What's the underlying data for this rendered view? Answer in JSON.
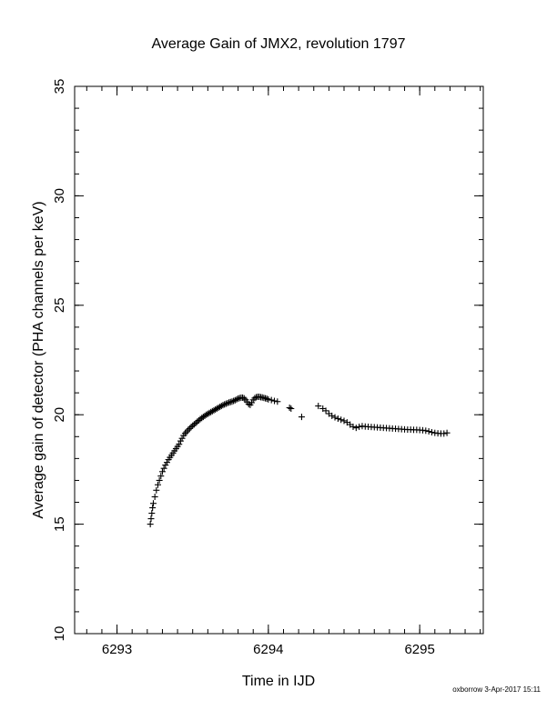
{
  "chart_data": {
    "type": "scatter",
    "title": "Average Gain of JMX2, revolution 1797",
    "xlabel": "Time in IJD",
    "ylabel": "Average gain of detector (PHA channels per keV)",
    "xlim": [
      6292.72,
      6295.42
    ],
    "ylim": [
      10,
      35
    ],
    "xticks": [
      6293,
      6294,
      6295
    ],
    "xtick_labels": [
      "6293",
      "6294",
      "6295"
    ],
    "yticks": [
      10,
      15,
      20,
      25,
      30,
      35
    ],
    "ytick_labels": [
      "10",
      "15",
      "20",
      "25",
      "30",
      "35"
    ],
    "marker": "+",
    "marker_color": "#000000",
    "grid": false,
    "series": [
      {
        "points": [
          [
            6293.22,
            15.0
          ],
          [
            6293.225,
            15.25
          ],
          [
            6293.23,
            15.5
          ],
          [
            6293.235,
            15.75
          ],
          [
            6293.24,
            15.95
          ],
          [
            6293.25,
            16.25
          ],
          [
            6293.26,
            16.55
          ],
          [
            6293.27,
            16.8
          ],
          [
            6293.28,
            17.0
          ],
          [
            6293.29,
            17.2
          ],
          [
            6293.3,
            17.4
          ],
          [
            6293.31,
            17.55
          ],
          [
            6293.32,
            17.7
          ],
          [
            6293.33,
            17.82
          ],
          [
            6293.34,
            17.95
          ],
          [
            6293.35,
            18.05
          ],
          [
            6293.36,
            18.15
          ],
          [
            6293.37,
            18.25
          ],
          [
            6293.38,
            18.35
          ],
          [
            6293.39,
            18.45
          ],
          [
            6293.4,
            18.55
          ],
          [
            6293.41,
            18.65
          ],
          [
            6293.42,
            18.8
          ],
          [
            6293.43,
            18.92
          ],
          [
            6293.44,
            19.05
          ],
          [
            6293.45,
            19.15
          ],
          [
            6293.46,
            19.22
          ],
          [
            6293.47,
            19.3
          ],
          [
            6293.48,
            19.37
          ],
          [
            6293.49,
            19.44
          ],
          [
            6293.5,
            19.5
          ],
          [
            6293.51,
            19.56
          ],
          [
            6293.52,
            19.62
          ],
          [
            6293.53,
            19.68
          ],
          [
            6293.54,
            19.74
          ],
          [
            6293.55,
            19.8
          ],
          [
            6293.56,
            19.85
          ],
          [
            6293.57,
            19.9
          ],
          [
            6293.58,
            19.95
          ],
          [
            6293.59,
            20.0
          ],
          [
            6293.6,
            20.04
          ],
          [
            6293.61,
            20.08
          ],
          [
            6293.62,
            20.12
          ],
          [
            6293.63,
            20.16
          ],
          [
            6293.64,
            20.2
          ],
          [
            6293.65,
            20.24
          ],
          [
            6293.66,
            20.28
          ],
          [
            6293.67,
            20.32
          ],
          [
            6293.68,
            20.36
          ],
          [
            6293.69,
            20.4
          ],
          [
            6293.7,
            20.44
          ],
          [
            6293.71,
            20.47
          ],
          [
            6293.72,
            20.5
          ],
          [
            6293.73,
            20.53
          ],
          [
            6293.74,
            20.56
          ],
          [
            6293.75,
            20.58
          ],
          [
            6293.76,
            20.6
          ],
          [
            6293.77,
            20.63
          ],
          [
            6293.78,
            20.66
          ],
          [
            6293.79,
            20.7
          ],
          [
            6293.8,
            20.74
          ],
          [
            6293.81,
            20.76
          ],
          [
            6293.82,
            20.78
          ],
          [
            6293.83,
            20.78
          ],
          [
            6293.84,
            20.75
          ],
          [
            6293.85,
            20.68
          ],
          [
            6293.86,
            20.58
          ],
          [
            6293.87,
            20.48
          ],
          [
            6293.88,
            20.45
          ],
          [
            6293.89,
            20.55
          ],
          [
            6293.9,
            20.68
          ],
          [
            6293.91,
            20.76
          ],
          [
            6293.92,
            20.8
          ],
          [
            6293.93,
            20.82
          ],
          [
            6293.94,
            20.82
          ],
          [
            6293.95,
            20.8
          ],
          [
            6293.96,
            20.79
          ],
          [
            6293.97,
            20.77
          ],
          [
            6293.98,
            20.75
          ],
          [
            6293.99,
            20.73
          ],
          [
            6294.0,
            20.7
          ],
          [
            6294.02,
            20.67
          ],
          [
            6294.04,
            20.63
          ],
          [
            6294.06,
            20.6
          ],
          [
            6294.14,
            20.32
          ],
          [
            6294.15,
            20.28
          ],
          [
            6294.22,
            19.9
          ],
          [
            6294.33,
            20.4
          ],
          [
            6294.36,
            20.28
          ],
          [
            6294.38,
            20.18
          ],
          [
            6294.4,
            20.05
          ],
          [
            6294.42,
            19.95
          ],
          [
            6294.44,
            19.88
          ],
          [
            6294.46,
            19.82
          ],
          [
            6294.48,
            19.77
          ],
          [
            6294.5,
            19.72
          ],
          [
            6294.52,
            19.65
          ],
          [
            6294.54,
            19.55
          ],
          [
            6294.56,
            19.45
          ],
          [
            6294.58,
            19.4
          ],
          [
            6294.6,
            19.45
          ],
          [
            6294.62,
            19.48
          ],
          [
            6294.64,
            19.46
          ],
          [
            6294.66,
            19.45
          ],
          [
            6294.68,
            19.44
          ],
          [
            6294.7,
            19.43
          ],
          [
            6294.72,
            19.42
          ],
          [
            6294.74,
            19.41
          ],
          [
            6294.76,
            19.4
          ],
          [
            6294.78,
            19.39
          ],
          [
            6294.8,
            19.38
          ],
          [
            6294.82,
            19.37
          ],
          [
            6294.84,
            19.36
          ],
          [
            6294.86,
            19.35
          ],
          [
            6294.88,
            19.34
          ],
          [
            6294.9,
            19.33
          ],
          [
            6294.92,
            19.32
          ],
          [
            6294.94,
            19.32
          ],
          [
            6294.96,
            19.31
          ],
          [
            6294.98,
            19.31
          ],
          [
            6295.0,
            19.3
          ],
          [
            6295.02,
            19.29
          ],
          [
            6295.04,
            19.27
          ],
          [
            6295.06,
            19.24
          ],
          [
            6295.08,
            19.2
          ],
          [
            6295.1,
            19.17
          ],
          [
            6295.12,
            19.15
          ],
          [
            6295.14,
            19.14
          ],
          [
            6295.16,
            19.14
          ],
          [
            6295.18,
            19.17
          ]
        ]
      }
    ]
  },
  "footer": "oxborrow  3-Apr-2017 15:11"
}
